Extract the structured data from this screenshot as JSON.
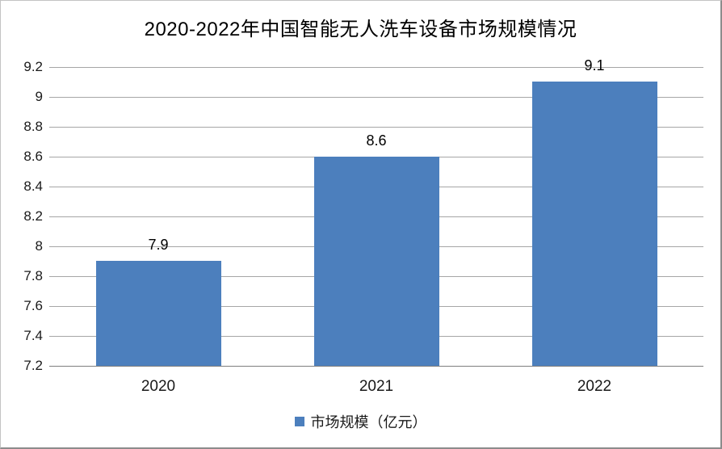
{
  "chart_data": {
    "type": "bar",
    "title": "2020-2022年中国智能无人洗车设备市场规模情况",
    "categories": [
      "2020",
      "2021",
      "2022"
    ],
    "series": [
      {
        "name": "市场规模（亿元）",
        "values": [
          7.9,
          8.6,
          9.1
        ]
      }
    ],
    "data_labels": [
      "7.9",
      "8.6",
      "9.1"
    ],
    "xlabel": "",
    "ylabel": "",
    "ylim": [
      7.2,
      9.2
    ],
    "ytick_step": 0.2,
    "ytick_labels": [
      "9.2",
      "9",
      "8.8",
      "8.6",
      "8.4",
      "8.2",
      "8",
      "7.8",
      "7.6",
      "7.4",
      "7.2"
    ],
    "grid": true,
    "legend": {
      "label": "市场规模（亿元）",
      "position": "bottom"
    },
    "colors": {
      "bar": "#4C7FBD",
      "gridline": "#A6A6A6",
      "axis_line": "#7F7F7F",
      "title_text": "#000000",
      "tick_text": "#1A1A1A",
      "background": "#FFFFFF",
      "border_light": "#C3C3C3",
      "border_dark": "#8C8C8C"
    }
  }
}
